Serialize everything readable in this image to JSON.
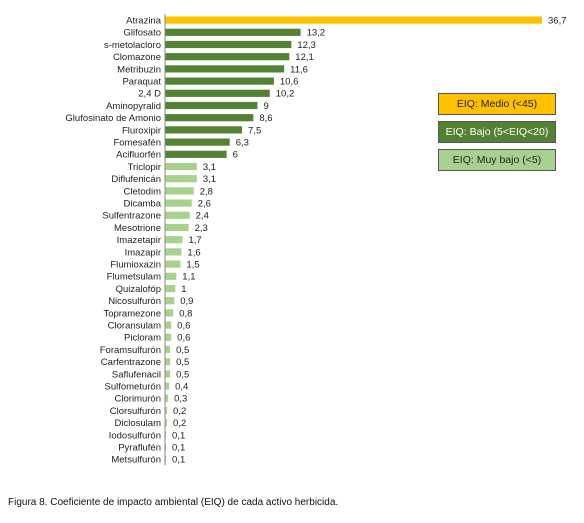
{
  "chart_data": {
    "type": "bar",
    "orientation": "horizontal",
    "title": "",
    "xlabel": "",
    "ylabel": "",
    "categories": [
      "Atrazina",
      "Glifosato",
      "s-metolacloro",
      "Clomazone",
      "Metribuzin",
      "Paraquat",
      "2,4 D",
      "Aminopyralid",
      "Glufosinato de Amonio",
      "Fluroxipir",
      "Fomesafén",
      "Acifluorfén",
      "Triclopir",
      "Diflufenicán",
      "Cletodim",
      "Dicamba",
      "Sulfentrazone",
      "Mesotrione",
      "Imazetapir",
      "Imazapir",
      "Flumioxazin",
      "Flumetsulam",
      "Quizalofóp",
      "Nicosulfurón",
      "Topramezone",
      "Cloransulam",
      "Picloram",
      "Foramsulfurón",
      "Carfentrazone",
      "Saflufenacil",
      "Sulfometurón",
      "Clorimurón",
      "Clorsulfurón",
      "Diclosulam",
      "Iodosulfurón",
      "Pyraflufén",
      "Metsulfurón"
    ],
    "values": [
      36.7,
      13.2,
      12.3,
      12.1,
      11.6,
      10.6,
      10.2,
      9,
      8.6,
      7.5,
      6.3,
      6,
      3.1,
      3.1,
      2.8,
      2.6,
      2.4,
      2.3,
      1.7,
      1.6,
      1.5,
      1.1,
      1,
      0.9,
      0.8,
      0.6,
      0.6,
      0.5,
      0.5,
      0.5,
      0.4,
      0.3,
      0.2,
      0.2,
      0.1,
      0.1,
      0.1
    ],
    "value_labels": [
      "36,7",
      "13,2",
      "12,3",
      "12,1",
      "11,6",
      "10,6",
      "10,2",
      "9",
      "8,6",
      "7,5",
      "6,3",
      "6",
      "3,1",
      "3,1",
      "2,8",
      "2,6",
      "2,4",
      "2,3",
      "1,7",
      "1,6",
      "1,5",
      "1,1",
      "1",
      "0,9",
      "0,8",
      "0,6",
      "0,6",
      "0,5",
      "0,5",
      "0,5",
      "0,4",
      "0,3",
      "0,2",
      "0,2",
      "0,1",
      "0,1",
      "0,1"
    ],
    "groups": [
      "medio",
      "bajo",
      "bajo",
      "bajo",
      "bajo",
      "bajo",
      "bajo",
      "bajo",
      "bajo",
      "bajo",
      "bajo",
      "bajo",
      "muy_bajo",
      "muy_bajo",
      "muy_bajo",
      "muy_bajo",
      "muy_bajo",
      "muy_bajo",
      "muy_bajo",
      "muy_bajo",
      "muy_bajo",
      "muy_bajo",
      "muy_bajo",
      "muy_bajo",
      "muy_bajo",
      "muy_bajo",
      "muy_bajo",
      "muy_bajo",
      "muy_bajo",
      "muy_bajo",
      "muy_bajo",
      "muy_bajo",
      "muy_bajo",
      "muy_bajo",
      "muy_bajo",
      "muy_bajo",
      "muy_bajo"
    ],
    "xlim": [
      0,
      36.7
    ],
    "grid": false,
    "legend": {
      "placement": "right",
      "entries": [
        {
          "key": "medio",
          "label": "EIQ: Medio (<45)",
          "color": "#FFC000",
          "text_color": "#222222"
        },
        {
          "key": "bajo",
          "label": "EIQ: Bajo (5<EIQ<20)",
          "color": "#548235",
          "text_color": "#ffffff"
        },
        {
          "key": "muy_bajo",
          "label": "EIQ: Muy bajo (<5)",
          "color": "#A9D18E",
          "text_color": "#222222"
        }
      ]
    }
  },
  "caption": "Figura 8. Coeficiente de impacto ambiental (EIQ) de cada activo herbicida."
}
